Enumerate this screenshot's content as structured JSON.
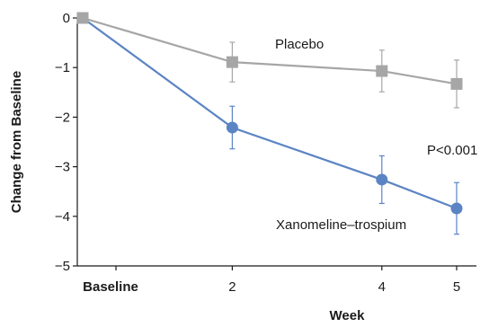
{
  "chart_data": {
    "type": "line",
    "xlabel": "Week",
    "ylabel": "Change from Baseline",
    "ylim": [
      -5,
      0
    ],
    "y_ticks": [
      0,
      -1,
      -2,
      -3,
      -4,
      -5
    ],
    "y_tick_labels": [
      "0",
      "−1",
      "−2",
      "−3",
      "−4",
      "−5"
    ],
    "x_ticks": [
      {
        "x": 0,
        "label": "Baseline"
      },
      {
        "x": 2,
        "label": "2"
      },
      {
        "x": 4,
        "label": "4"
      },
      {
        "x": 5,
        "label": "5"
      }
    ],
    "xlim": [
      -0.45,
      5.35
    ],
    "grid": false,
    "series": [
      {
        "name": "Placebo",
        "color": "#a6a6a6",
        "marker": "square",
        "points": [
          {
            "x": 0,
            "y": 0,
            "err": 0
          },
          {
            "x": 2,
            "y": -0.89,
            "err": 0.4
          },
          {
            "x": 4,
            "y": -1.07,
            "err": 0.42
          },
          {
            "x": 5,
            "y": -1.33,
            "err": 0.48
          }
        ]
      },
      {
        "name": "Xanomeline–trospium",
        "color": "#5b84c4",
        "marker": "circle",
        "points": [
          {
            "x": 0,
            "y": 0,
            "err": 0
          },
          {
            "x": 2,
            "y": -2.21,
            "err": 0.43
          },
          {
            "x": 4,
            "y": -3.26,
            "err": 0.48
          },
          {
            "x": 5,
            "y": -3.84,
            "err": 0.52
          }
        ]
      }
    ],
    "annotations": [
      {
        "text": "P<0.001"
      }
    ]
  }
}
